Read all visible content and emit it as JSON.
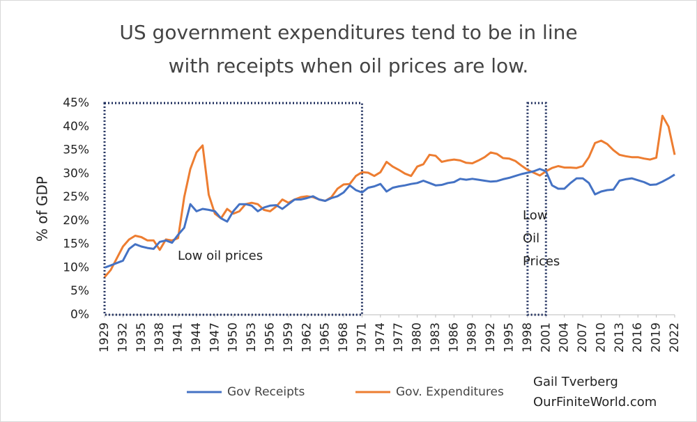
{
  "chart_data": {
    "type": "line",
    "title": [
      "US government expenditures tend to be in line",
      "with receipts when oil prices are low."
    ],
    "y_label": "% of GDP",
    "x": [
      1929,
      1930,
      1931,
      1932,
      1933,
      1934,
      1935,
      1936,
      1937,
      1938,
      1939,
      1940,
      1941,
      1942,
      1943,
      1944,
      1945,
      1946,
      1947,
      1948,
      1949,
      1950,
      1951,
      1952,
      1953,
      1954,
      1955,
      1956,
      1957,
      1958,
      1959,
      1960,
      1961,
      1962,
      1963,
      1964,
      1965,
      1966,
      1967,
      1968,
      1969,
      1970,
      1971,
      1972,
      1973,
      1974,
      1975,
      1976,
      1977,
      1978,
      1979,
      1980,
      1981,
      1982,
      1983,
      1984,
      1985,
      1986,
      1987,
      1988,
      1989,
      1990,
      1991,
      1992,
      1993,
      1994,
      1995,
      1996,
      1997,
      1998,
      1999,
      2000,
      2001,
      2002,
      2003,
      2004,
      2005,
      2006,
      2007,
      2008,
      2009,
      2010,
      2011,
      2012,
      2013,
      2014,
      2015,
      2016,
      2017,
      2018,
      2019,
      2020,
      2021,
      2022
    ],
    "series": [
      {
        "name": "Gov Receipts",
        "color": "#4472c4",
        "values": [
          10,
          10.5,
          11,
          11.5,
          14,
          15,
          14.5,
          14.2,
          14,
          15.5,
          15.8,
          15.3,
          17,
          18.5,
          23.5,
          22,
          22.5,
          22.3,
          22,
          20.5,
          19.8,
          22,
          23.5,
          23.5,
          23.2,
          22,
          22.8,
          23.2,
          23.3,
          22.5,
          23.5,
          24.5,
          24.5,
          24.8,
          25.2,
          24.5,
          24.2,
          24.8,
          25.2,
          26,
          27.5,
          26.5,
          26,
          27,
          27.3,
          27.8,
          26.2,
          27,
          27.3,
          27.5,
          27.8,
          28,
          28.5,
          28,
          27.5,
          27.6,
          28,
          28.2,
          28.9,
          28.7,
          28.9,
          28.7,
          28.5,
          28.3,
          28.4,
          28.8,
          29.1,
          29.5,
          29.9,
          30.2,
          30.5,
          31,
          30.5,
          27.5,
          26.8,
          26.8,
          28,
          29,
          29,
          28,
          25.6,
          26.2,
          26.5,
          26.6,
          28.5,
          28.8,
          29,
          28.6,
          28.2,
          27.6,
          27.7,
          28.3,
          29,
          29.8
        ]
      },
      {
        "name": "Gov. Expenditures",
        "color": "#ed7d31",
        "values": [
          8,
          9.5,
          12,
          14.5,
          16,
          16.8,
          16.5,
          15.8,
          15.8,
          13.8,
          16,
          15.8,
          16.3,
          25,
          31,
          34.5,
          36,
          25.5,
          21.5,
          20.5,
          22.5,
          21.5,
          22,
          23.5,
          23.8,
          23.5,
          22.3,
          22,
          23,
          24.5,
          23.8,
          24.5,
          25,
          25.2,
          25,
          24.5,
          24.2,
          25,
          26.8,
          27.7,
          27.8,
          29.5,
          30.3,
          30.2,
          29.5,
          30.3,
          32.5,
          31.5,
          30.8,
          30,
          29.5,
          31.5,
          32,
          34,
          33.8,
          32.5,
          32.8,
          33,
          32.8,
          32.3,
          32.2,
          32.8,
          33.5,
          34.5,
          34.2,
          33.3,
          33.2,
          32.7,
          31.7,
          30.8,
          30.2,
          29.6,
          30.5,
          31.2,
          31.6,
          31.3,
          31.3,
          31.2,
          31.6,
          33.5,
          36.5,
          37,
          36.3,
          35,
          34,
          33.7,
          33.5,
          33.5,
          33.2,
          33,
          33.4,
          42.3,
          40,
          34
        ]
      }
    ],
    "xlim": [
      1929,
      2022
    ],
    "xticks": [
      1929,
      1932,
      1935,
      1938,
      1941,
      1944,
      1947,
      1950,
      1953,
      1956,
      1959,
      1962,
      1965,
      1968,
      1971,
      1974,
      1977,
      1980,
      1983,
      1986,
      1989,
      1992,
      1995,
      1998,
      2001,
      2004,
      2007,
      2010,
      2013,
      2016,
      2019,
      2022
    ],
    "ylim": [
      0,
      45
    ],
    "yticks": [
      {
        "value": 0,
        "label": "0%"
      },
      {
        "value": 5,
        "label": "5%"
      },
      {
        "value": 10,
        "label": "10%"
      },
      {
        "value": 15,
        "label": "15%"
      },
      {
        "value": 20,
        "label": "20%"
      },
      {
        "value": 25,
        "label": "25%"
      },
      {
        "value": 30,
        "label": "30%"
      },
      {
        "value": 35,
        "label": "35%"
      },
      {
        "value": 40,
        "label": "40%"
      },
      {
        "value": 45,
        "label": "45%"
      }
    ],
    "grid": false,
    "highlights": [
      {
        "x0": 1929,
        "x1": 1971,
        "label": [
          "Low oil prices"
        ]
      },
      {
        "x0": 1998,
        "x1": 2001,
        "label": [
          "Low",
          "Oil",
          "Prices"
        ]
      }
    ],
    "credit": [
      "Gail Tverberg",
      "OurFiniteWorld.com"
    ]
  }
}
